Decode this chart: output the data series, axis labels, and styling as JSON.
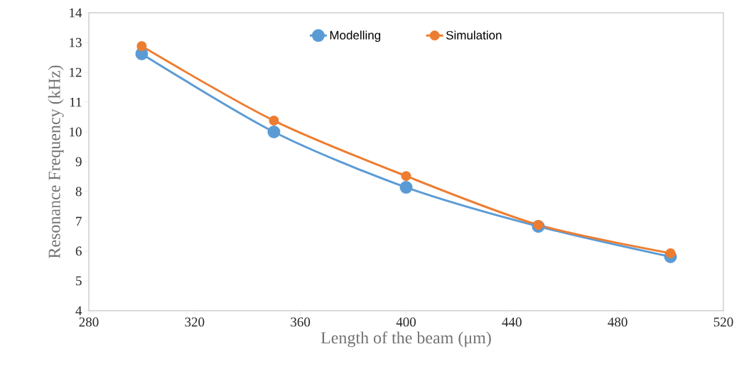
{
  "chart_data": {
    "type": "line",
    "xlabel": "Length of the beam (μm)",
    "ylabel": "Resonance Frequency  (kHz)",
    "x": [
      300,
      350,
      400,
      450,
      500
    ],
    "series": [
      {
        "name": "Modelling",
        "color": "#5b9bd5",
        "values": [
          12.62,
          10.0,
          8.14,
          6.83,
          5.81
        ]
      },
      {
        "name": "Simulation",
        "color": "#ed7d31",
        "values": [
          12.88,
          10.38,
          8.52,
          6.88,
          5.93
        ]
      }
    ],
    "xlim": [
      280,
      520
    ],
    "xticks": [
      280,
      320,
      360,
      400,
      440,
      480,
      520
    ],
    "ylim": [
      4,
      14
    ],
    "yticks": [
      4,
      5,
      6,
      7,
      8,
      9,
      10,
      11,
      12,
      13,
      14
    ],
    "grid": false,
    "legend": "top",
    "marker": "circle",
    "line_style": "solid"
  }
}
